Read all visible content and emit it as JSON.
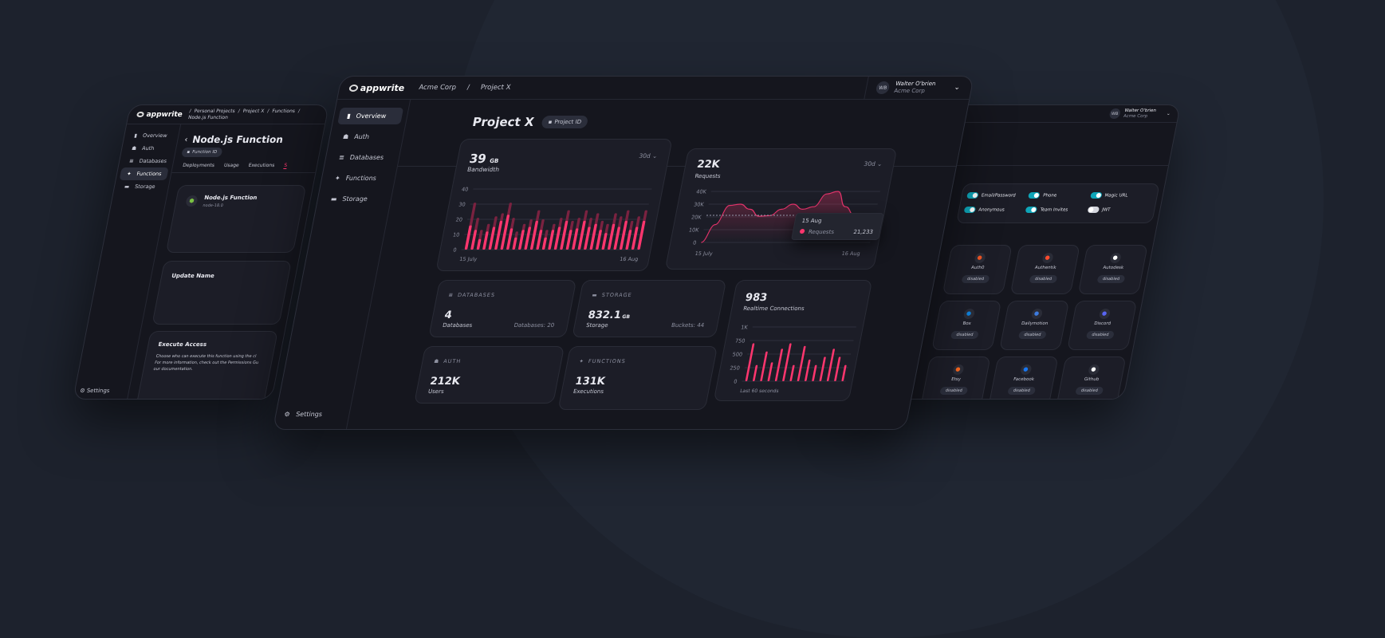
{
  "colors": {
    "accent": "#fd366e",
    "toggle_on": "#0ea5b8",
    "background": "#1d222d",
    "panel": "#15161e"
  },
  "left_window": {
    "logo": "appwrite",
    "breadcrumb": [
      "Personal Projects",
      "Project X",
      "Functions",
      "Node.js Function"
    ],
    "sidebar": [
      {
        "label": "Overview",
        "icon": "bar-chart-icon"
      },
      {
        "label": "Auth",
        "icon": "users-icon"
      },
      {
        "label": "Databases",
        "icon": "database-icon"
      },
      {
        "label": "Functions",
        "icon": "bolt-icon",
        "active": true
      },
      {
        "label": "Storage",
        "icon": "folder-icon"
      }
    ],
    "settings": "Settings",
    "title": "Node.js Function",
    "function_id": "Function ID",
    "tabs": [
      "Deployments",
      "Usage",
      "Executions",
      "S"
    ],
    "fn_card": {
      "name": "Node.js Function",
      "runtime": "node-18.0"
    },
    "update_name": "Update Name",
    "execute_access": {
      "title": "Execute Access",
      "lines": [
        "Choose who can execute this function using the cl",
        "For more information, check out the Permissions Gu",
        "our documentation."
      ]
    }
  },
  "center_window": {
    "logo": "appwrite",
    "breadcrumb": [
      "Acme Corp",
      "/",
      "Project X"
    ],
    "user": {
      "initials": "WB",
      "name": "Walter O'brien",
      "org": "Acme Corp"
    },
    "sidebar": [
      {
        "label": "Overview",
        "icon": "bar-chart-icon",
        "active": true
      },
      {
        "label": "Auth",
        "icon": "users-icon"
      },
      {
        "label": "Databases",
        "icon": "database-icon"
      },
      {
        "label": "Functions",
        "icon": "bolt-icon"
      },
      {
        "label": "Storage",
        "icon": "folder-icon"
      }
    ],
    "settings": "Settings",
    "title": "Project X",
    "project_id": "Project ID",
    "bandwidth": {
      "value": "39",
      "unit": "GB",
      "label": "Bandwidth",
      "range": "30d"
    },
    "requests": {
      "value": "22K",
      "label": "Requests",
      "range": "30d",
      "tooltip": {
        "date": "15 Aug",
        "series": "Requests",
        "value": "21,233"
      }
    },
    "databases": {
      "header": "DATABASES",
      "value": "4",
      "label": "Databases",
      "side": "Databases: 20"
    },
    "storage": {
      "header": "STORAGE",
      "value": "832.1",
      "unit": "GB",
      "label": "Storage",
      "side": "Buckets: 44"
    },
    "auth": {
      "header": "AUTH",
      "value": "212K",
      "label": "Users"
    },
    "functions": {
      "header": "FUNCTIONS",
      "value": "131K",
      "label": "Executions"
    },
    "realtime": {
      "value": "983",
      "label": "Realtime Connections",
      "caption": "Last 60 seconds"
    }
  },
  "right_window": {
    "user": {
      "initials": "WB",
      "name": "Walter O'brien",
      "org": "Acme Corp"
    },
    "toggles": [
      {
        "label": "Email/Password",
        "on": true
      },
      {
        "label": "Phone",
        "on": true
      },
      {
        "label": "Magic URL",
        "on": true
      },
      {
        "label": "Anonymous",
        "on": true
      },
      {
        "label": "Team Invites",
        "on": true
      },
      {
        "label": "JWT",
        "on": false
      }
    ],
    "providers": [
      {
        "name": "Auth0",
        "status": "disabled",
        "color": "#eb5424"
      },
      {
        "name": "Authentik",
        "status": "disabled",
        "color": "#fd4b2d"
      },
      {
        "name": "Autodesk",
        "status": "disabled",
        "color": "#ffffff"
      },
      {
        "name": "Box",
        "status": "disabled",
        "color": "#0f7fd8"
      },
      {
        "name": "Dailymotion",
        "status": "disabled",
        "color": "#3d7be0"
      },
      {
        "name": "Discord",
        "status": "disabled",
        "color": "#5865f2"
      },
      {
        "name": "Etsy",
        "status": "disabled",
        "color": "#f1641e"
      },
      {
        "name": "Facebook",
        "status": "disabled",
        "color": "#1877f2"
      },
      {
        "name": "Github",
        "status": "disabled",
        "color": "#ffffff"
      }
    ]
  },
  "chart_data": [
    {
      "type": "bar",
      "title": "Bandwidth",
      "x_start": "15 July",
      "x_end": "16 Aug",
      "xticks": [
        "15 July",
        "16 Aug"
      ],
      "yticks": [
        "0",
        "10",
        "20",
        "30",
        "40"
      ],
      "ylim": [
        0,
        40
      ],
      "grid": true,
      "series": [
        {
          "values": [
            16,
            13,
            7,
            12,
            15,
            19,
            23,
            14,
            8,
            13,
            15,
            19,
            13,
            8,
            13,
            15,
            19,
            13,
            14,
            19,
            15,
            17,
            13,
            11,
            17,
            15,
            19,
            13,
            15,
            19
          ]
        },
        {
          "values": [
            31,
            21,
            13,
            17,
            22,
            24,
            31,
            21,
            12,
            17,
            20,
            26,
            20,
            13,
            17,
            21,
            26,
            19,
            21,
            26,
            21,
            24,
            19,
            17,
            24,
            22,
            26,
            19,
            22,
            26
          ]
        }
      ]
    },
    {
      "type": "area",
      "title": "Requests",
      "xticks": [
        "15 July",
        "16 Aug"
      ],
      "yticks": [
        "0",
        "10K",
        "20K",
        "30K",
        "40K"
      ],
      "ylim": [
        0,
        40000
      ],
      "grid": true,
      "reference_line": 21233,
      "x": [
        0,
        2,
        4,
        6,
        8,
        10,
        12,
        14,
        16,
        18,
        20,
        22,
        24,
        26,
        28,
        30,
        32
      ],
      "values": [
        0,
        14000,
        29000,
        30000,
        26000,
        20500,
        21000,
        26000,
        30000,
        26000,
        28000,
        38000,
        40000,
        28000,
        21233,
        22000,
        18000
      ]
    },
    {
      "type": "bar",
      "title": "Realtime Connections",
      "xlabel": "Last 60 seconds",
      "yticks": [
        "0",
        "250",
        "500",
        "750",
        "1K"
      ],
      "ylim": [
        0,
        1000
      ],
      "grid": true,
      "values": [
        700,
        300,
        550,
        350,
        600,
        700,
        300,
        650,
        400,
        300,
        450,
        600,
        450,
        300
      ]
    }
  ]
}
